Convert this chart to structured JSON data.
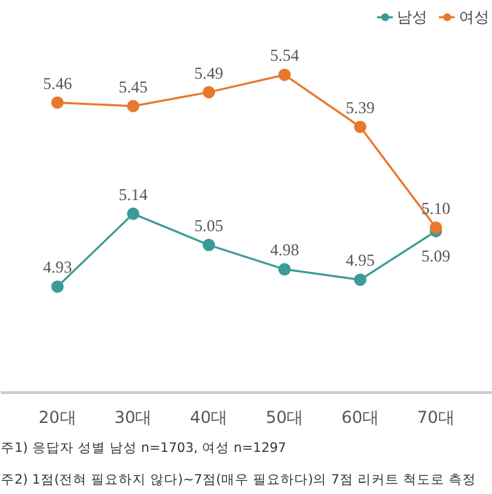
{
  "chart_data": {
    "type": "line",
    "categories": [
      "20대",
      "30대",
      "40대",
      "50대",
      "60대",
      "70대"
    ],
    "series": [
      {
        "name": "남성",
        "color": "#3a9c96",
        "values": [
          4.93,
          5.14,
          5.05,
          4.98,
          4.95,
          5.09
        ],
        "value_labels": [
          "4.93",
          "5.14",
          "5.05",
          "4.98",
          "4.95",
          "5.09"
        ]
      },
      {
        "name": "여성",
        "color": "#e8782e",
        "values": [
          5.46,
          5.45,
          5.49,
          5.54,
          5.39,
          5.1
        ],
        "value_labels": [
          "5.46",
          "5.45",
          "5.49",
          "5.54",
          "5.39",
          "5.10"
        ]
      }
    ],
    "marker": "circle",
    "line_style": "solid",
    "legend": "top right",
    "annotations": [
      "주1) 응답자 성별 남성 n=1703, 여성 n=1297",
      "주2) 1점(전혀 필요하지 않다)~7점(매우 필요하다)의 7점 리커트 척도로 측정"
    ]
  }
}
